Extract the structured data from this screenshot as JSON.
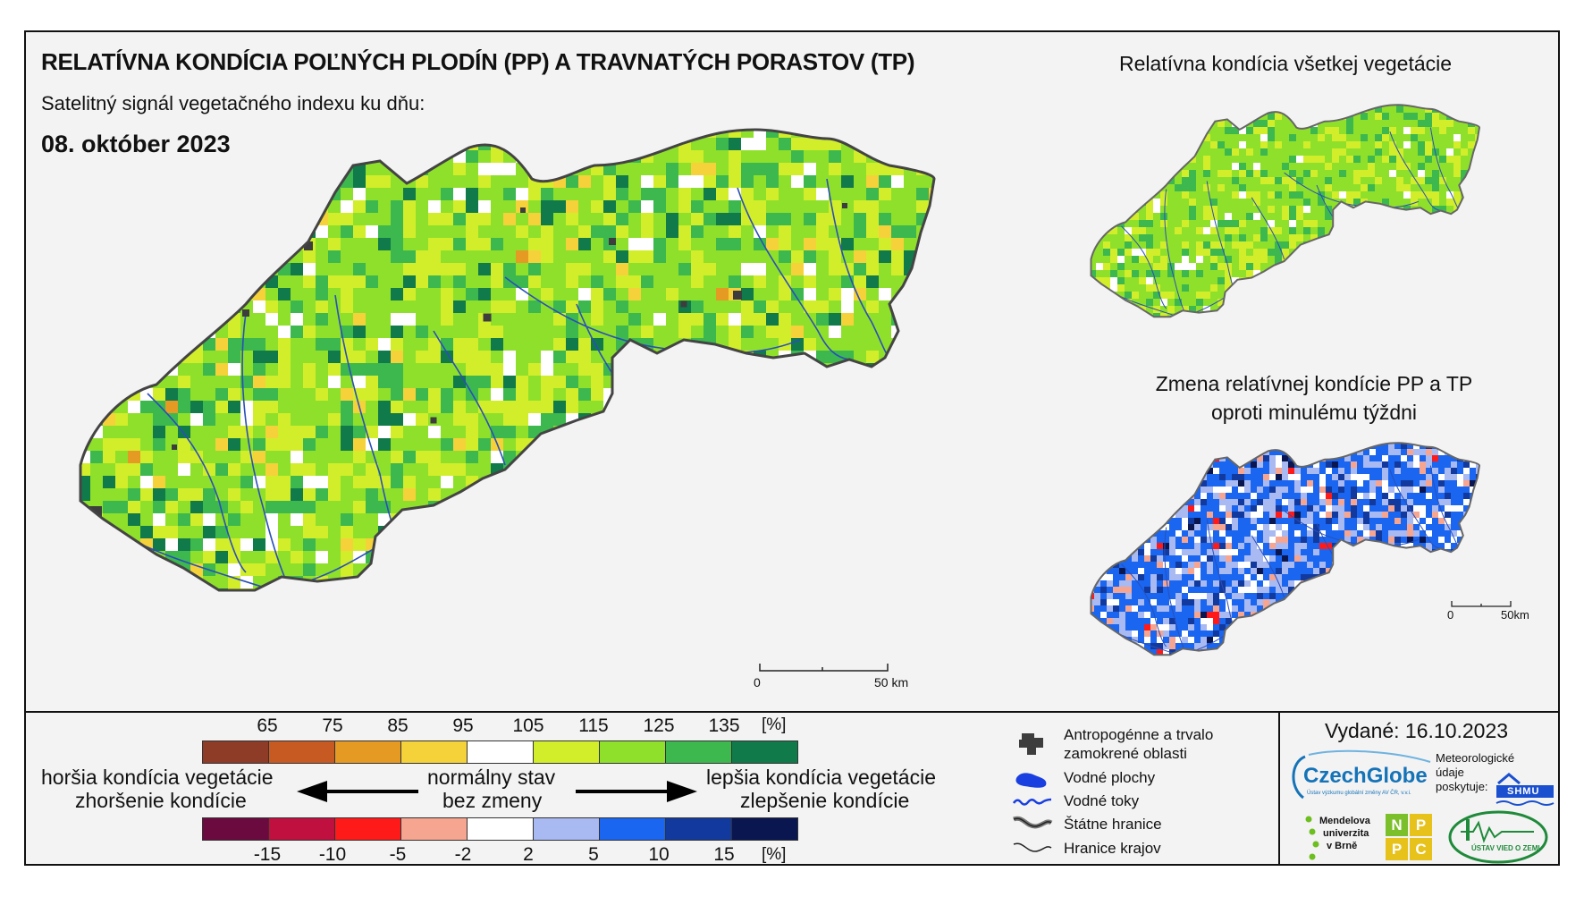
{
  "title": "RELATÍVNA KONDÍCIA POĽNÝCH PLODÍN (PP) A TRAVNATÝCH PORASTOV (TP)",
  "subtitle": "Satelitný signál vegetačného indexu ku dňu:",
  "date": "08. október 2023",
  "inset_top_title": "Relatívna kondícia všetkej vegetácie",
  "inset_bottom_title_line1": "Zmena relatívnej kondície PP a TP",
  "inset_bottom_title_line2": "oproti minulému týždni",
  "scalebar_main": {
    "start": "0",
    "end": "50 km"
  },
  "scalebar_inset": {
    "start": "0",
    "end": "50km"
  },
  "condition_scale": {
    "ticks": [
      "65",
      "75",
      "85",
      "95",
      "105",
      "115",
      "125",
      "135"
    ],
    "unit": "[%]",
    "colors": [
      "#8e3b28",
      "#c75a23",
      "#e59a24",
      "#f6d23a",
      "#ffffff",
      "#d2ee2a",
      "#8fe02a",
      "#3cb84f",
      "#107a4a"
    ]
  },
  "change_scale": {
    "ticks": [
      "-15",
      "-10",
      "-5",
      "-2",
      "2",
      "5",
      "10",
      "15"
    ],
    "unit": "[%]",
    "colors": [
      "#6b0a3f",
      "#c0103f",
      "#ff1a1a",
      "#f6a590",
      "#ffffff",
      "#a9b9f2",
      "#1a66f0",
      "#123a9e",
      "#0a1650"
    ]
  },
  "scale_text": {
    "worse_line1": "horšia kondícia vegetácie",
    "worse_line2": "zhoršenie kondície",
    "normal_line1": "normálny stav",
    "normal_line2": "bez zmeny",
    "better_line1": "lepšia kondícia vegetácie",
    "better_line2": "zlepšenie kondície"
  },
  "map_legend": [
    {
      "icon": "urban-area-icon",
      "label_line1": "Antropogénne a trvalo",
      "label_line2": "zamokrené oblasti"
    },
    {
      "icon": "water-body-icon",
      "label_line1": "Vodné plochy",
      "label_line2": ""
    },
    {
      "icon": "river-icon",
      "label_line1": "Vodné toky",
      "label_line2": ""
    },
    {
      "icon": "state-border-icon",
      "label_line1": "Štátne hranice",
      "label_line2": ""
    },
    {
      "icon": "region-border-icon",
      "label_line1": "Hranice krajov",
      "label_line2": ""
    }
  ],
  "issued": "Vydané: 16.10.2023",
  "logos": {
    "czechglobe": "CzechGlobe",
    "czechglobe_sub": "Ústav výzkumu globální změny AV ČR, v.v.i.",
    "meteo_line1": "Meteorologické",
    "meteo_line2": "údaje",
    "meteo_line3": "poskytuje:",
    "shmu": "SHMU",
    "mendel_line1": "Mendelova",
    "mendel_line2": "univerzita",
    "mendel_line3": "v Brně",
    "nppc": [
      "N",
      "P",
      "P",
      "C"
    ],
    "uvz": "ÚSTAV VIED O ZEMI"
  }
}
